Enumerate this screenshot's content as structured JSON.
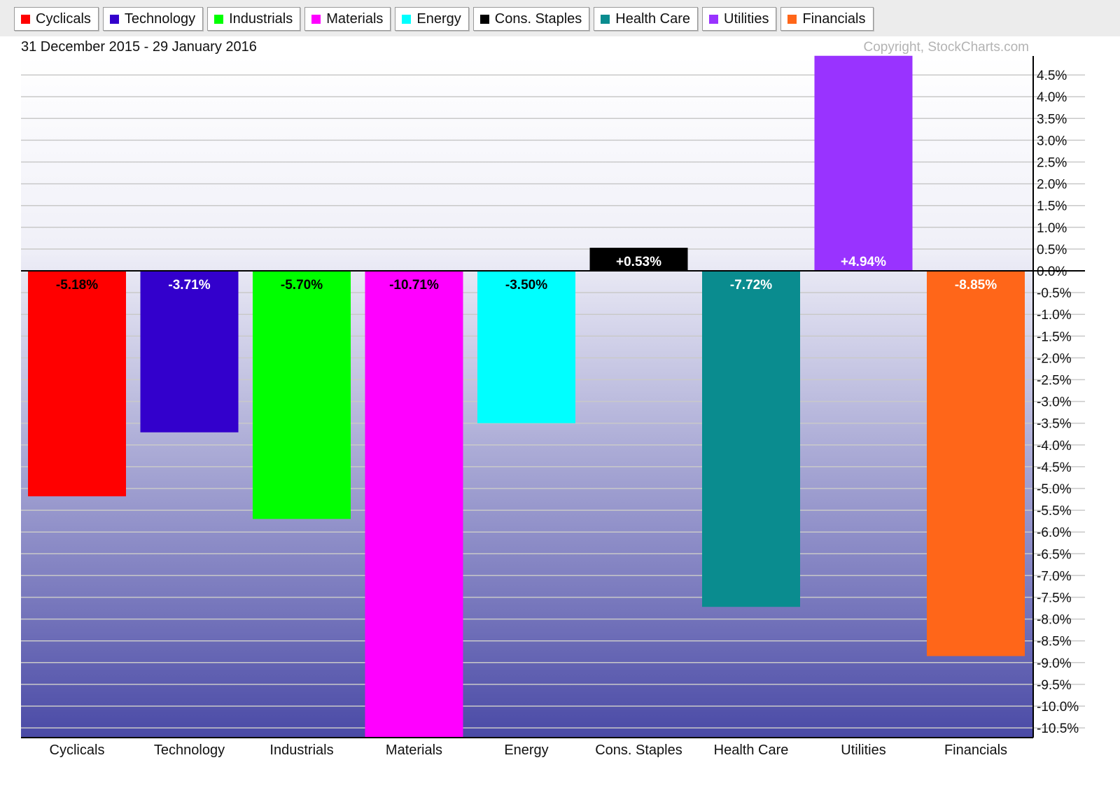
{
  "legend": [
    {
      "label": "Cyclicals",
      "color": "#ff0000"
    },
    {
      "label": "Technology",
      "color": "#3300cc"
    },
    {
      "label": "Industrials",
      "color": "#00ff00"
    },
    {
      "label": "Materials",
      "color": "#ff00ff"
    },
    {
      "label": "Energy",
      "color": "#00ffff"
    },
    {
      "label": "Cons. Staples",
      "color": "#000000"
    },
    {
      "label": "Health Care",
      "color": "#0a8c8f"
    },
    {
      "label": "Utilities",
      "color": "#9933ff"
    },
    {
      "label": "Financials",
      "color": "#ff6619"
    }
  ],
  "chart_data": {
    "type": "bar",
    "title": "31 December 2015 - 29 January 2016",
    "copyright": "Copyright, StockCharts.com",
    "categories": [
      "Cyclicals",
      "Technology",
      "Industrials",
      "Materials",
      "Energy",
      "Cons. Staples",
      "Health Care",
      "Utilities",
      "Financials"
    ],
    "values": [
      -5.18,
      -3.71,
      -5.7,
      -10.71,
      -3.5,
      0.53,
      -7.72,
      4.94,
      -8.85
    ],
    "value_labels": [
      "-5.18%",
      "-3.71%",
      "-5.70%",
      "-10.71%",
      "-3.50%",
      "+0.53%",
      "-7.72%",
      "+4.94%",
      "-8.85%"
    ],
    "colors": [
      "#ff0000",
      "#3300cc",
      "#00ff00",
      "#ff00ff",
      "#00ffff",
      "#000000",
      "#0a8c8f",
      "#9933ff",
      "#ff6619"
    ],
    "label_colors": [
      "#000000",
      "#ffffff",
      "#000000",
      "#000000",
      "#000000",
      "#ffffff",
      "#ffffff",
      "#ffffff",
      "#ffffff"
    ],
    "ylim": [
      -10.7,
      4.9
    ],
    "y_ticks": [
      "4.5%",
      "4.0%",
      "3.5%",
      "3.0%",
      "2.5%",
      "2.0%",
      "1.5%",
      "1.0%",
      "0.5%",
      "0.0%",
      "-0.5%",
      "-1.0%",
      "-1.5%",
      "-2.0%",
      "-2.5%",
      "-3.0%",
      "-3.5%",
      "-4.0%",
      "-4.5%",
      "-5.0%",
      "-5.5%",
      "-6.0%",
      "-6.5%",
      "-7.0%",
      "-7.5%",
      "-8.0%",
      "-8.5%",
      "-9.0%",
      "-9.5%",
      "-10.0%",
      "-10.5%"
    ],
    "y_tick_values": [
      4.5,
      4.0,
      3.5,
      3.0,
      2.5,
      2.0,
      1.5,
      1.0,
      0.5,
      0.0,
      -0.5,
      -1.0,
      -1.5,
      -2.0,
      -2.5,
      -3.0,
      -3.5,
      -4.0,
      -4.5,
      -5.0,
      -5.5,
      -6.0,
      -6.5,
      -7.0,
      -7.5,
      -8.0,
      -8.5,
      -9.0,
      -9.5,
      -10.0,
      -10.5
    ],
    "grid": true,
    "axis_side": "right",
    "legend_position": "top"
  }
}
